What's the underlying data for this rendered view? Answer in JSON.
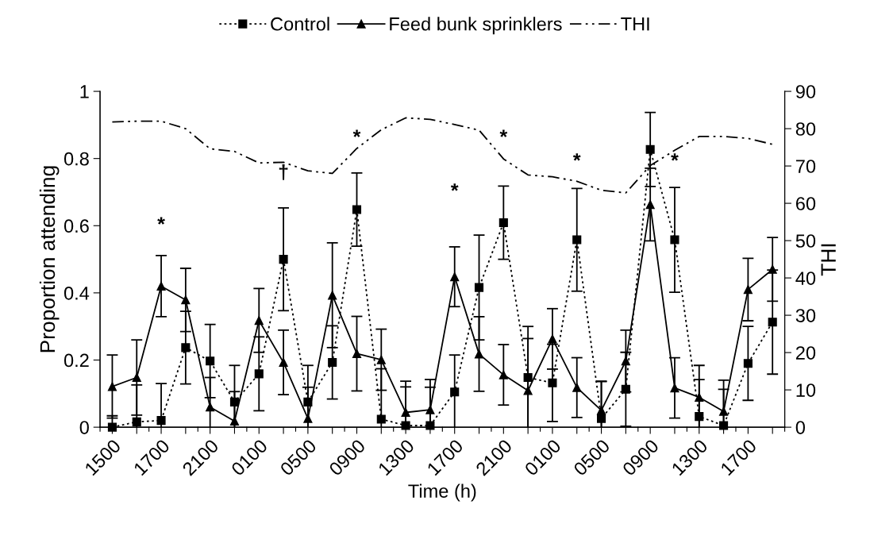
{
  "chart_data": {
    "type": "line",
    "xlabel": "Time (h)",
    "ylabel": "Proportion attending",
    "y2label": "THI",
    "categories": [
      "1500",
      null,
      "1700",
      null,
      "2100",
      null,
      "0100",
      null,
      "0500",
      null,
      "0900",
      null,
      "1300",
      null,
      "1700",
      null,
      "2100",
      null,
      "0100",
      null,
      "0500",
      null,
      "0900",
      null,
      "1300",
      null,
      "1700",
      null
    ],
    "ylim": [
      0,
      1
    ],
    "yticks": [
      0,
      0.2,
      0.4,
      0.6,
      0.8,
      1
    ],
    "y2lim": [
      0,
      90
    ],
    "y2ticks": [
      0,
      10,
      20,
      30,
      40,
      50,
      60,
      70,
      80,
      90
    ],
    "grid": false,
    "legend": "top",
    "series": [
      {
        "name": "Control",
        "color": "#000000",
        "marker": "square",
        "line_style": "dotted",
        "values": [
          0,
          0.016,
          0.02,
          0.237,
          0.197,
          0.075,
          0.159,
          0.5,
          0.075,
          0.193,
          0.648,
          0.024,
          0.005,
          0.005,
          0.105,
          0.416,
          0.609,
          0.148,
          0.132,
          0.558,
          0.026,
          0.113,
          0.827,
          0.558,
          0.032,
          0.005,
          0.19,
          0.313
        ],
        "errors": [
          0.034,
          0.11,
          0.11,
          0.108,
          0.109,
          0.109,
          0.11,
          0.153,
          0.109,
          0.109,
          0.109,
          0.15,
          0.115,
          0.114,
          0.11,
          0.156,
          0.109,
          0.152,
          0.115,
          0.153,
          0.11,
          0.11,
          0.11,
          0.156,
          0.11,
          0.108,
          0.11,
          0.155
        ]
      },
      {
        "name": "Feed bunk sprinklers",
        "color": "#000000",
        "marker": "triangle",
        "line_style": "solid",
        "values": [
          0.121,
          0.148,
          0.42,
          0.379,
          0.06,
          0.018,
          0.318,
          0.193,
          0.026,
          0.393,
          0.219,
          0.201,
          0.044,
          0.052,
          0.448,
          0.218,
          0.156,
          0.109,
          0.263,
          0.118,
          0.05,
          0.197,
          0.663,
          0.117,
          0.089,
          0.047,
          0.41,
          0.47
        ],
        "errors": [
          0.094,
          0.112,
          0.091,
          0.094,
          0.088,
          0.088,
          0.095,
          0.096,
          0.093,
          0.156,
          0.111,
          0.091,
          0.093,
          0.09,
          0.089,
          0.111,
          0.09,
          0.155,
          0.09,
          0.089,
          0.087,
          0.092,
          0.108,
          0.09,
          0.095,
          0.093,
          0.093,
          0.095
        ]
      },
      {
        "name": "THI",
        "color": "#000000",
        "marker": "none",
        "line_style": "dashdotdot",
        "axis": "y2",
        "values": [
          81.8,
          82.0,
          82.0,
          80.0,
          74.6,
          73.9,
          70.8,
          71.0,
          68.7,
          68.0,
          74.7,
          79.7,
          82.9,
          82.5,
          81.1,
          79.6,
          71.9,
          67.6,
          67.1,
          65.9,
          63.5,
          62.8,
          70.1,
          74.2,
          77.9,
          77.9,
          77.4,
          75.8
        ]
      }
    ],
    "annotations": [
      "*",
      "†",
      "*",
      "*",
      "*",
      "*",
      "*"
    ]
  }
}
